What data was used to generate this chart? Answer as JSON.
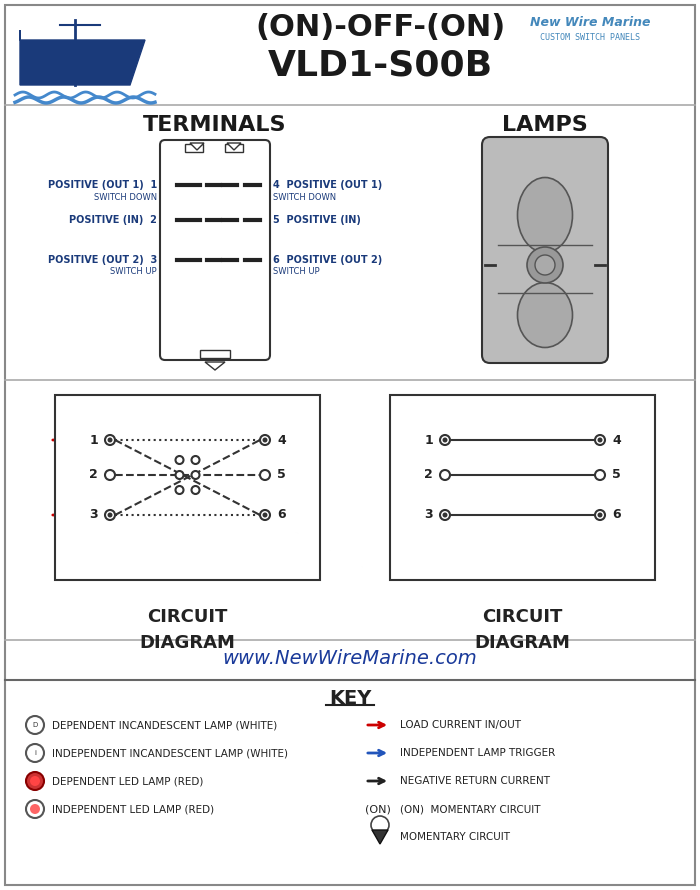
{
  "title_line1": "(ON)-OFF-(ON)",
  "title_line2": "VLD1-S00B",
  "brand_name": "New Wire Marine",
  "brand_sub": "CUSTOM SWITCH PANELS",
  "terminals_label": "TERMINALS",
  "lamps_label": "LAMPS",
  "circuit_diagram_label": "CIRCUIT\nDIAGRAM",
  "website": "www.NewWireMarine.com",
  "key_title": "KEY",
  "background_color": "#ffffff",
  "border_color": "#aaaaaa",
  "title_color": "#1a1a1a",
  "blue_color": "#1a3a7a",
  "navy_color": "#1a2a5a",
  "red_color": "#cc0000",
  "key_items_left": [
    "DEPENDENT INCANDESCENT LAMP (WHITE)",
    "INDEPENDENT INCANDESCENT LAMP (WHITE)",
    "DEPENDENT LED LAMP (RED)",
    "INDEPENDENT LED LAMP (RED)"
  ],
  "key_items_right": [
    "LOAD CURRENT IN/OUT",
    "INDEPENDENT LAMP TRIGGER",
    "NEGATIVE RETURN CURRENT",
    "(ON)  MOMENTARY CIRCUIT",
    "MOMENTARY CIRCUIT"
  ],
  "terminal_labels_left": [
    [
      "POSITIVE (OUT 1)",
      "SWITCH DOWN",
      "1"
    ],
    [
      "POSITIVE (IN)",
      "",
      "2"
    ],
    [
      "POSITIVE (OUT 2)",
      "SWITCH UP",
      "3"
    ]
  ],
  "terminal_labels_right": [
    [
      "4",
      "POSITIVE (OUT 1)",
      "SWITCH DOWN"
    ],
    [
      "5",
      "POSITIVE (IN)",
      ""
    ],
    [
      "6",
      "POSITIVE (OUT 2)",
      "SWITCH UP"
    ]
  ]
}
